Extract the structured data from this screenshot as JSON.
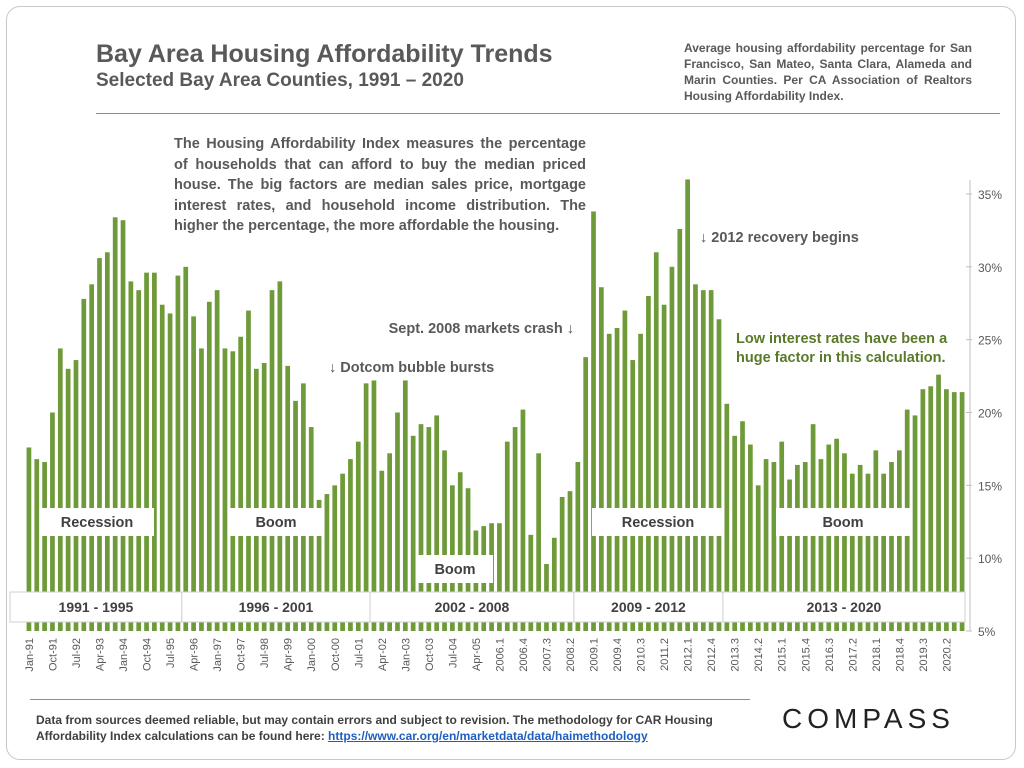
{
  "page": {
    "title": "Bay Area Housing Affordability Trends",
    "subtitle": "Selected Bay Area Counties, 1991 – 2020",
    "note": "Average housing affordability percentage for San Francisco, San Mateo, Santa Clara, Alameda and Marin Counties. Per CA Association of Realtors Housing Affordability Index.",
    "definition": "The Housing Affordability Index measures the percentage of households that can afford to buy the median priced house. The big factors are median sales price, mortgage interest rates, and household income distribution. The higher the percentage, the more affordable the housing.",
    "footnote_text": "Data from sources deemed reliable, but may contain errors and subject to revision. The methodology for CAR Housing Affordability Index calculations can be found here: ",
    "footnote_link": "https://www.car.org/en/marketdata/data/haimethodology",
    "logo": "COMPASS"
  },
  "colors": {
    "bar": "#6e9a3a",
    "text": "#595959",
    "annotation_green": "#5a7a2a",
    "period_fill": "#ffffff"
  },
  "chart_data": {
    "type": "bar",
    "categories": [
      "Jan-91",
      "",
      "",
      "Oct-91",
      "",
      "",
      "Jul-92",
      "",
      "",
      "Apr-93",
      "",
      "",
      "Jan-94",
      "",
      "",
      "Oct-94",
      "",
      "",
      "Jul-95",
      "",
      "",
      "Apr-96",
      "",
      "",
      "Jan-97",
      "",
      "",
      "Oct-97",
      "",
      "",
      "Jul-98",
      "",
      "",
      "Apr-99",
      "",
      "",
      "Jan-00",
      "",
      "",
      "Oct-00",
      "",
      "",
      "Jul-01",
      "",
      "",
      "Apr-02",
      "",
      "",
      "Jan-03",
      "",
      "",
      "Oct-03",
      "",
      "",
      "Jul-04",
      "",
      "",
      "Apr-05",
      "",
      "",
      "2006.1",
      "",
      "",
      "2006.4",
      "",
      "",
      "2007.3",
      "",
      "",
      "2008.2",
      "",
      "",
      "2009.1",
      "",
      "",
      "2009.4",
      "",
      "",
      "2010.3",
      "",
      "",
      "2011.2",
      "",
      "",
      "2012.1",
      "",
      "",
      "2012.4",
      "",
      "",
      "2013.3",
      "",
      "",
      "2014.2",
      "",
      "",
      "2015.1",
      "",
      "",
      "2015.4",
      "",
      "",
      "2016.3",
      "",
      "",
      "2017.2",
      "",
      "",
      "2018.1",
      "",
      "",
      "2018.4",
      "",
      "",
      "2019.3",
      "",
      "",
      "2020.2",
      "",
      ""
    ],
    "values": [
      17.6,
      16.8,
      16.6,
      20.0,
      24.4,
      23.0,
      23.6,
      27.8,
      28.8,
      30.6,
      31.0,
      33.4,
      33.2,
      29.0,
      28.4,
      29.6,
      29.6,
      27.4,
      26.8,
      29.4,
      30.0,
      26.6,
      24.4,
      27.6,
      28.4,
      24.4,
      24.2,
      25.2,
      27.0,
      23.0,
      23.4,
      28.4,
      29.0,
      23.2,
      20.8,
      22.0,
      19.0,
      14.0,
      14.4,
      15.0,
      15.8,
      16.8,
      18.0,
      22.0,
      22.2,
      16.0,
      17.2,
      20.0,
      22.2,
      18.4,
      19.2,
      19.0,
      19.8,
      17.4,
      15.0,
      15.9,
      14.8,
      11.9,
      12.2,
      12.4,
      12.4,
      18.0,
      19.0,
      20.2,
      11.6,
      17.2,
      9.6,
      11.4,
      14.2,
      14.6,
      16.6,
      23.8,
      33.8,
      28.6,
      25.4,
      25.8,
      27.0,
      23.6,
      25.4,
      28.0,
      31.0,
      27.4,
      30.0,
      32.6,
      36.0,
      28.8,
      28.4,
      28.4,
      26.4,
      20.6,
      18.4,
      19.4,
      17.8,
      15.0,
      16.8,
      16.6,
      18.0,
      15.4,
      16.4,
      16.6,
      19.2,
      16.8,
      17.8,
      18.2,
      17.2,
      15.8,
      16.4,
      15.8,
      17.4,
      15.8,
      16.6,
      17.4,
      20.2,
      19.8,
      21.6,
      21.8,
      22.6,
      21.6,
      21.4,
      21.4
    ],
    "ylim": [
      5,
      36
    ],
    "y_ticks": [
      "5%",
      "10%",
      "15%",
      "20%",
      "25%",
      "30%",
      "35%"
    ],
    "grid": false,
    "annotations": [
      {
        "text": "↓ 2012 recovery begins",
        "color": "text"
      },
      {
        "text": "Sept. 2008 markets crash ↓",
        "color": "text"
      },
      {
        "text": "↓ Dotcom bubble bursts",
        "color": "text"
      },
      {
        "text": "Low interest rates have been a",
        "color": "green"
      },
      {
        "text": "huge factor in this calculation.",
        "color": "green"
      }
    ],
    "phases": [
      {
        "label": "Recession"
      },
      {
        "label": "Boom"
      },
      {
        "label": "Boom"
      },
      {
        "label": "Recession"
      },
      {
        "label": "Boom"
      }
    ],
    "periods": [
      {
        "label": "1991 - 1995"
      },
      {
        "label": "1996 - 2001"
      },
      {
        "label": "2002 - 2008"
      },
      {
        "label": "2009 - 2012"
      },
      {
        "label": "2013 - 2020"
      }
    ]
  }
}
